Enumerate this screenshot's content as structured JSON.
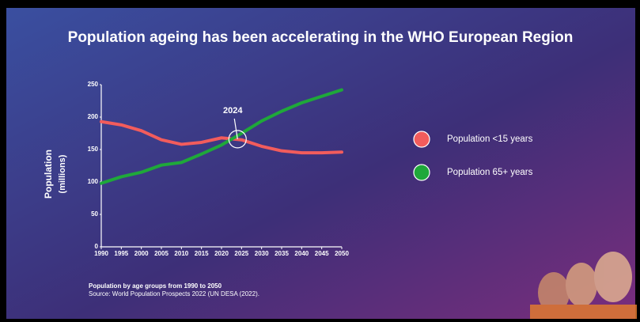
{
  "chart_data": {
    "type": "line",
    "title": "Population ageing has been accelerating in the WHO European Region",
    "y_label": "Population",
    "y_label_unit": "(millions)",
    "annotation": "2024",
    "footnote": "Population by age groups from 1990 to 2050",
    "source": "Source: World Population Prospects 2022 (UN DESA (2022).",
    "x": [
      1990,
      1995,
      2000,
      2005,
      2010,
      2015,
      2020,
      2025,
      2030,
      2035,
      2040,
      2045,
      2050
    ],
    "series": [
      {
        "name": "Population <15 years",
        "color": "#f25c5c",
        "values": [
          193,
          188,
          179,
          165,
          158,
          161,
          168,
          165,
          155,
          148,
          145,
          145,
          146
        ]
      },
      {
        "name": "Population 65+ years",
        "color": "#1fa83a",
        "values": [
          98,
          108,
          115,
          126,
          130,
          143,
          157,
          175,
          194,
          209,
          222,
          232,
          242
        ]
      }
    ],
    "xlim": [
      1990,
      2050
    ],
    "xticks": [
      1990,
      1995,
      2000,
      2005,
      2010,
      2015,
      2020,
      2025,
      2030,
      2035,
      2040,
      2045,
      2050
    ],
    "ylim": [
      0,
      250
    ],
    "yticks": [
      0,
      50,
      100,
      150,
      200,
      250
    ],
    "grid": false,
    "legend": "right"
  }
}
